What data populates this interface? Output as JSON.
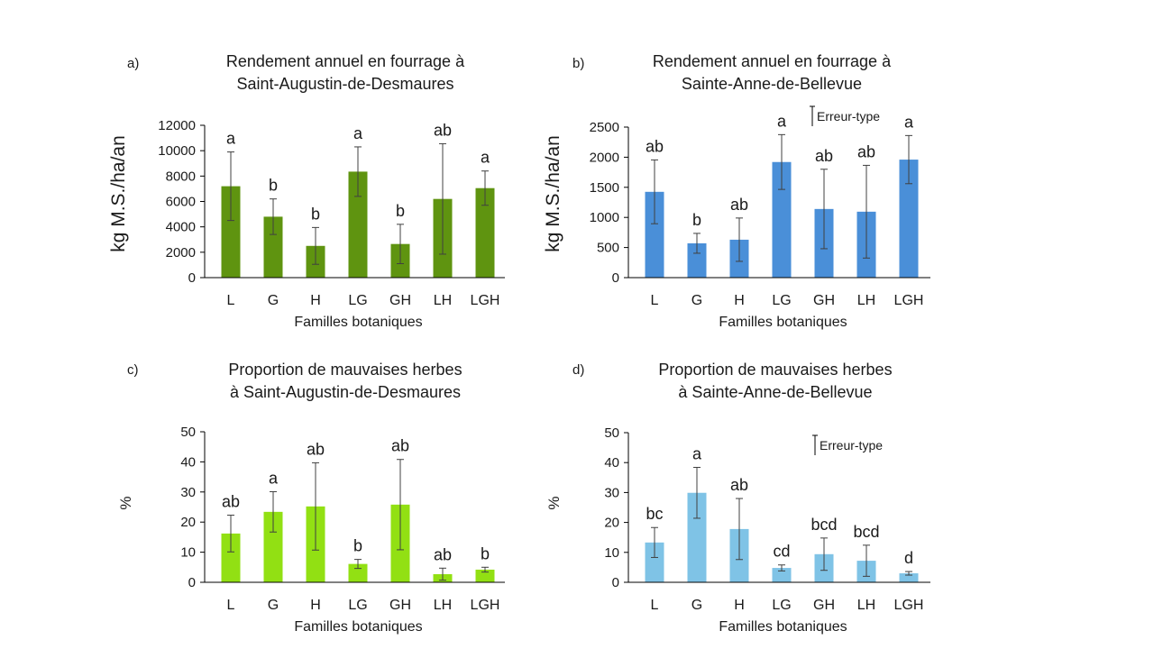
{
  "chart_data": [
    {
      "panel": "a)",
      "type": "bar",
      "title": [
        "Rendement annuel en fourrage à",
        "Saint-Augustin-de-Desmaures"
      ],
      "xlabel": "Familles botaniques",
      "ylabel": "kg M.S./ha/an",
      "categories": [
        "L",
        "G",
        "H",
        "LG",
        "GH",
        "LH",
        "LGH"
      ],
      "values": [
        7200,
        4800,
        2500,
        8350,
        2650,
        6200,
        7050
      ],
      "errors": [
        2700,
        1400,
        1450,
        1950,
        1550,
        4350,
        1350
      ],
      "significance": [
        "a",
        "b",
        "b",
        "a",
        "b",
        "ab",
        "a"
      ],
      "ylim": [
        0,
        12000
      ],
      "yticks": [
        0,
        2000,
        4000,
        6000,
        8000,
        10000,
        12000
      ],
      "color": "#5f9410",
      "legend": null,
      "grid": false
    },
    {
      "panel": "b)",
      "type": "bar",
      "title": [
        "Rendement annuel en fourrage à",
        "Sainte-Anne-de-Bellevue"
      ],
      "xlabel": "Familles botaniques",
      "ylabel": "kg M.S./ha/an",
      "categories": [
        "L",
        "G",
        "H",
        "LG",
        "GH",
        "LH",
        "LGH"
      ],
      "values": [
        1425,
        570,
        630,
        1920,
        1140,
        1095,
        1960
      ],
      "errors": [
        530,
        165,
        360,
        455,
        660,
        770,
        400
      ],
      "significance": [
        "ab",
        "b",
        "ab",
        "a",
        "ab",
        "ab",
        "a"
      ],
      "ylim": [
        0,
        2500
      ],
      "yticks": [
        0,
        500,
        1000,
        1500,
        2000,
        2500
      ],
      "color": "#4a8fd8",
      "legend": "Erreur-type",
      "legend_position": "top-right",
      "grid": false
    },
    {
      "panel": "c)",
      "type": "bar",
      "title": [
        "Proportion de mauvaises herbes",
        "à Saint-Augustin-de-Desmaures"
      ],
      "xlabel": "Familles botaniques",
      "ylabel": "%",
      "categories": [
        "L",
        "G",
        "H",
        "LG",
        "GH",
        "LH",
        "LGH"
      ],
      "values": [
        16.2,
        23.4,
        25.2,
        6.1,
        25.8,
        2.7,
        4.2
      ],
      "errors": [
        6.1,
        6.7,
        14.5,
        1.5,
        15.0,
        2.0,
        0.8
      ],
      "significance": [
        "ab",
        "a",
        "ab",
        "b",
        "ab",
        "ab",
        "b"
      ],
      "ylim": [
        0,
        50
      ],
      "yticks": [
        0,
        10,
        20,
        30,
        40,
        50
      ],
      "color": "#92e013",
      "legend": null,
      "grid": false
    },
    {
      "panel": "d)",
      "type": "bar",
      "title": [
        "Proportion de mauvaises herbes",
        "à Sainte-Anne-de-Bellevue"
      ],
      "xlabel": "Familles botaniques",
      "ylabel": "%",
      "categories": [
        "L",
        "G",
        "H",
        "LG",
        "GH",
        "LH",
        "LGH"
      ],
      "values": [
        13.3,
        29.9,
        17.8,
        4.8,
        9.4,
        7.2,
        3.0
      ],
      "errors": [
        5.0,
        8.5,
        10.2,
        1.0,
        5.4,
        5.2,
        0.6
      ],
      "significance": [
        "bc",
        "a",
        "ab",
        "cd",
        "bcd",
        "bcd",
        "d"
      ],
      "ylim": [
        0,
        50
      ],
      "yticks": [
        0,
        10,
        20,
        30,
        40,
        50
      ],
      "color": "#7fc3e6",
      "legend": "Erreur-type",
      "legend_position": "top-right",
      "grid": false
    }
  ]
}
